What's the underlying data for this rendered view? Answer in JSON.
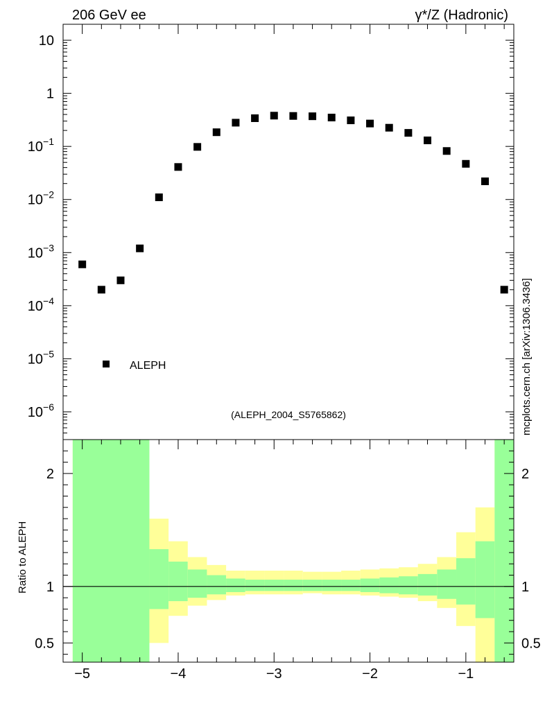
{
  "header": {
    "left": "206 GeV ee",
    "right": "γ*/Z (Hadronic)"
  },
  "side_label": "mcplots.cern.ch [arXiv:1306.3436]",
  "analysis_label": "(ALEPH_2004_S5765862)",
  "legend": {
    "label": "ALEPH"
  },
  "ratio_ylabel": "Ratio to ALEPH",
  "colors": {
    "band_inner": "#99ff99",
    "band_outer": "#ffff99",
    "marker": "#000000"
  },
  "chart_data": [
    {
      "type": "scatter",
      "yscale": "log",
      "xlim": [
        -5.2,
        -0.5
      ],
      "ylim": [
        3e-07,
        20
      ],
      "y_ticks": [
        "10",
        "1",
        "10^-1",
        "10^-2",
        "10^-3",
        "10^-4",
        "10^-5",
        "10^-6"
      ],
      "series": [
        {
          "name": "ALEPH",
          "marker": "square",
          "points": [
            [
              -5.0,
              0.0006
            ],
            [
              -4.8,
              0.0002
            ],
            [
              -4.6,
              0.0003
            ],
            [
              -4.4,
              0.0012
            ],
            [
              -4.2,
              0.011
            ],
            [
              -4.0,
              0.041
            ],
            [
              -3.8,
              0.098
            ],
            [
              -3.6,
              0.185
            ],
            [
              -3.4,
              0.28
            ],
            [
              -3.2,
              0.34
            ],
            [
              -3.0,
              0.38
            ],
            [
              -2.8,
              0.375
            ],
            [
              -2.6,
              0.37
            ],
            [
              -2.4,
              0.35
            ],
            [
              -2.2,
              0.31
            ],
            [
              -2.0,
              0.27
            ],
            [
              -1.8,
              0.225
            ],
            [
              -1.6,
              0.18
            ],
            [
              -1.4,
              0.13
            ],
            [
              -1.2,
              0.082
            ],
            [
              -1.0,
              0.047
            ],
            [
              -0.8,
              0.022
            ],
            [
              -0.6,
              0.0002
            ]
          ]
        }
      ]
    },
    {
      "type": "area",
      "xlim": [
        -5.2,
        -0.5
      ],
      "ylim": [
        0.33,
        2.3
      ],
      "x_ticks": [
        -5,
        -4,
        -3,
        -2,
        -1
      ],
      "y_ticks": [
        0.5,
        1,
        2
      ],
      "reference_line": 1,
      "bands": [
        [
          -5.1,
          -4.3,
          0.33,
          2.3,
          0.33,
          2.3
        ],
        [
          -4.3,
          -4.1,
          0.5,
          1.6,
          0.8,
          1.33
        ],
        [
          -4.1,
          -3.9,
          0.74,
          1.4,
          0.87,
          1.22
        ],
        [
          -3.9,
          -3.7,
          0.83,
          1.26,
          0.9,
          1.15
        ],
        [
          -3.7,
          -3.5,
          0.88,
          1.19,
          0.93,
          1.1
        ],
        [
          -3.5,
          -3.3,
          0.92,
          1.14,
          0.95,
          1.07
        ],
        [
          -3.3,
          -3.1,
          0.93,
          1.14,
          0.96,
          1.06
        ],
        [
          -3.1,
          -2.9,
          0.93,
          1.14,
          0.96,
          1.06
        ],
        [
          -2.9,
          -2.7,
          0.93,
          1.14,
          0.96,
          1.06
        ],
        [
          -2.7,
          -2.5,
          0.94,
          1.13,
          0.96,
          1.06
        ],
        [
          -2.5,
          -2.3,
          0.93,
          1.13,
          0.96,
          1.06
        ],
        [
          -2.3,
          -2.1,
          0.93,
          1.14,
          0.96,
          1.06
        ],
        [
          -2.1,
          -1.9,
          0.92,
          1.15,
          0.95,
          1.07
        ],
        [
          -1.9,
          -1.7,
          0.91,
          1.16,
          0.94,
          1.08
        ],
        [
          -1.7,
          -1.5,
          0.9,
          1.17,
          0.93,
          1.09
        ],
        [
          -1.5,
          -1.3,
          0.87,
          1.2,
          0.92,
          1.11
        ],
        [
          -1.3,
          -1.1,
          0.81,
          1.26,
          0.89,
          1.15
        ],
        [
          -1.1,
          -0.9,
          0.65,
          1.48,
          0.84,
          1.25
        ],
        [
          -0.9,
          -0.7,
          0.33,
          1.7,
          0.72,
          1.4
        ],
        [
          -0.7,
          -0.5,
          0.33,
          2.3,
          0.33,
          2.3
        ]
      ]
    }
  ]
}
